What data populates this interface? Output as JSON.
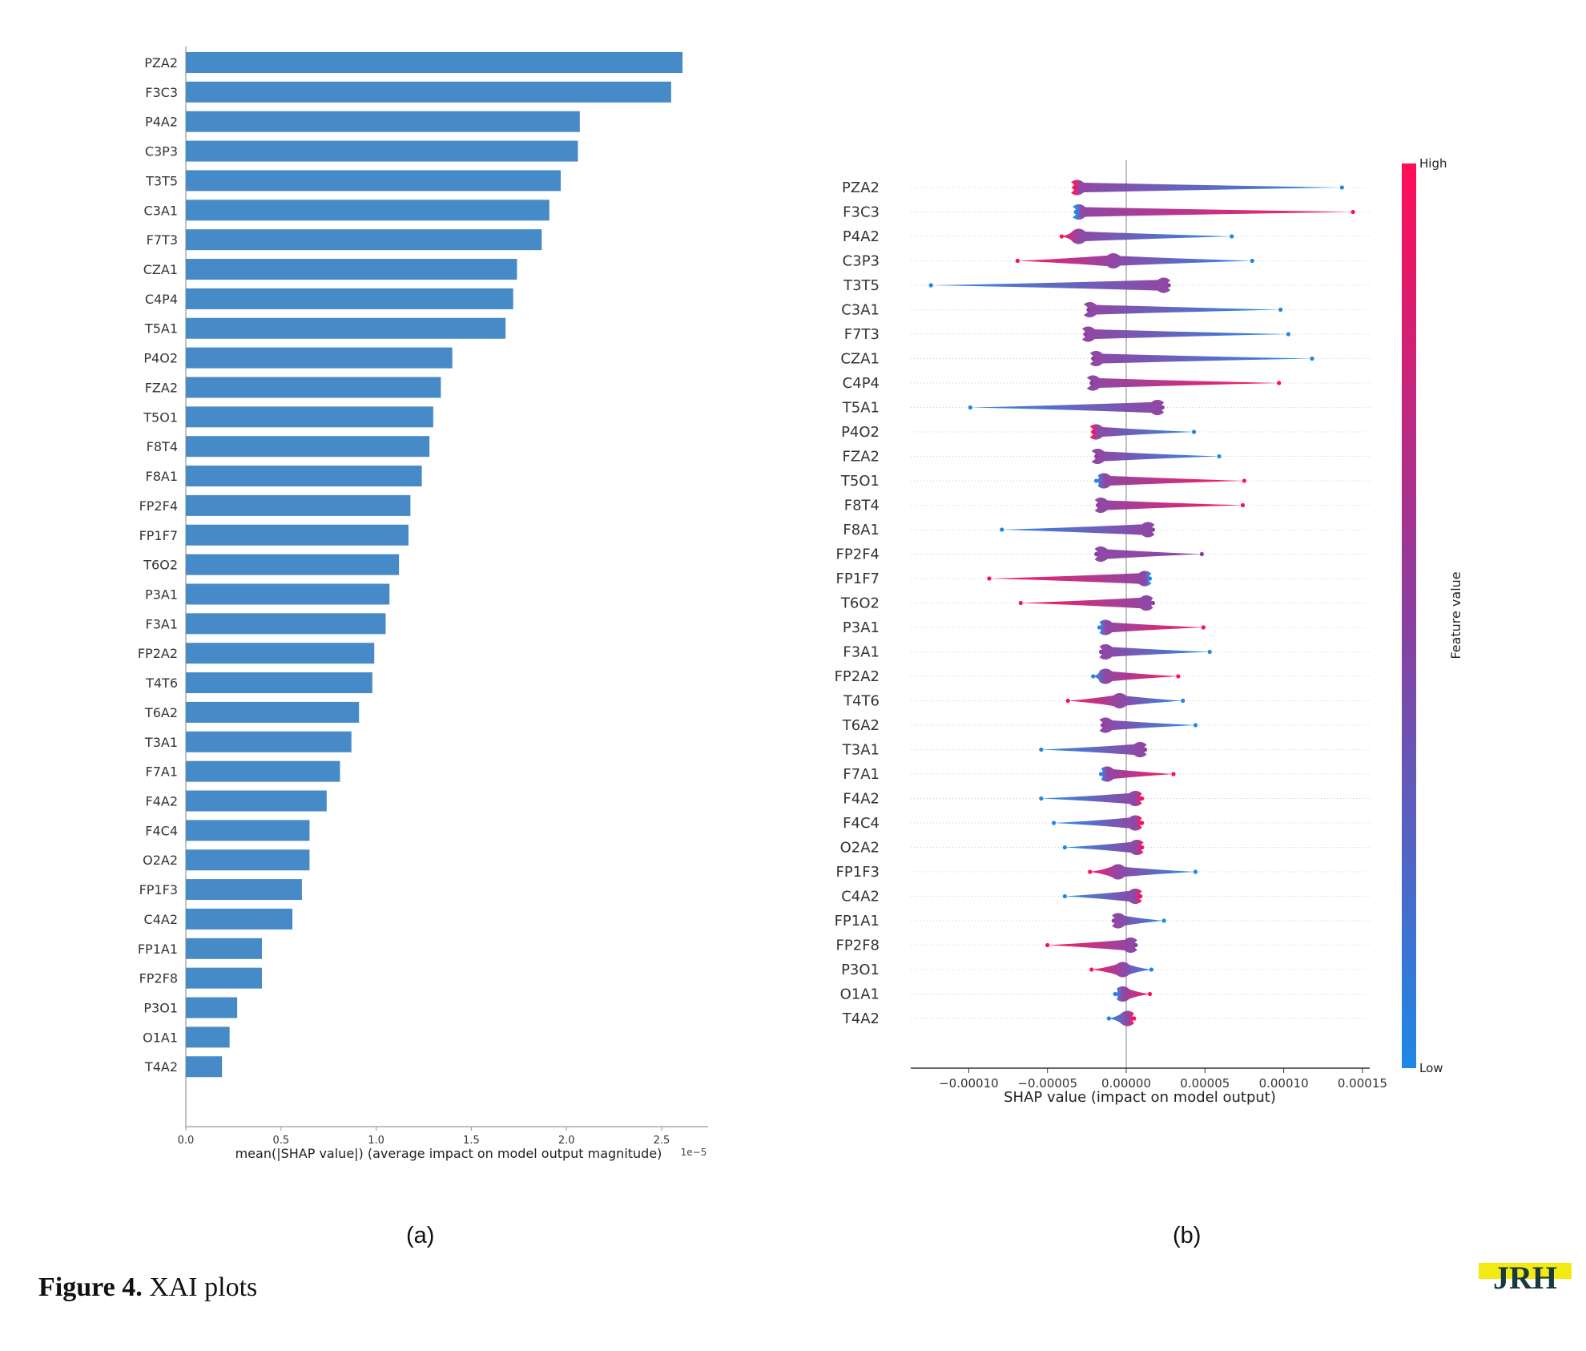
{
  "caption": {
    "label": "Figure 4.",
    "text": "XAI plots"
  },
  "subfigures": [
    "(a)",
    "(b)"
  ],
  "logo": {
    "text": "JRH",
    "colors": {
      "dark": "#17393f",
      "accent": "#f2ea12"
    }
  },
  "chart_data": [
    {
      "type": "bar",
      "orientation": "horizontal",
      "title": "",
      "xlabel": "mean(|SHAP value|) (average impact on model output magnitude)",
      "ylabel": "",
      "x_scale_label": "1e−5",
      "xlim": [
        0,
        2.75
      ],
      "xticks": [
        "0.0",
        "0.5",
        "1.0",
        "1.5",
        "2.0",
        "2.5"
      ],
      "color": "#468bc8",
      "grid": false,
      "categories": [
        "PZA2",
        "F3C3",
        "P4A2",
        "C3P3",
        "T3T5",
        "C3A1",
        "F7T3",
        "CZA1",
        "C4P4",
        "T5A1",
        "P4O2",
        "FZA2",
        "T5O1",
        "F8T4",
        "F8A1",
        "FP2F4",
        "FP1F7",
        "T6O2",
        "P3A1",
        "F3A1",
        "FP2A2",
        "T4T6",
        "T6A2",
        "T3A1",
        "F7A1",
        "F4A2",
        "F4C4",
        "O2A2",
        "FP1F3",
        "C4A2",
        "FP1A1",
        "FP2F8",
        "P3O1",
        "O1A1",
        "T4A2"
      ],
      "values": [
        2.61,
        2.55,
        2.07,
        2.06,
        1.97,
        1.91,
        1.87,
        1.74,
        1.72,
        1.68,
        1.4,
        1.34,
        1.3,
        1.28,
        1.24,
        1.18,
        1.17,
        1.12,
        1.07,
        1.05,
        0.99,
        0.98,
        0.91,
        0.87,
        0.81,
        0.74,
        0.65,
        0.65,
        0.61,
        0.56,
        0.4,
        0.4,
        0.27,
        0.23,
        0.19
      ]
    },
    {
      "type": "scatter",
      "subtype": "beeswarm",
      "title": "",
      "xlabel": "SHAP value (impact on model output)",
      "xlim": [
        -0.00012,
        0.000155
      ],
      "xticks": [
        "−0.00010",
        "−0.00005",
        "0.00000",
        "0.00005",
        "0.00010",
        "0.00015"
      ],
      "xtick_values": [
        -0.0001,
        -5e-05,
        0,
        5e-05,
        0.0001,
        0.00015
      ],
      "colorbar": {
        "label": "Feature value",
        "high": "High",
        "low": "Low",
        "high_color": "#ff0d57",
        "low_color": "#1e88e5"
      },
      "categories": [
        "PZA2",
        "F3C3",
        "P4A2",
        "C3P3",
        "T3T5",
        "C3A1",
        "F7T3",
        "CZA1",
        "C4P4",
        "T5A1",
        "P4O2",
        "FZA2",
        "T5O1",
        "F8T4",
        "F8A1",
        "FP2F4",
        "FP1F7",
        "T6O2",
        "P3A1",
        "F3A1",
        "FP2A2",
        "T4T6",
        "T6A2",
        "T3A1",
        "F7A1",
        "F4A2",
        "F4C4",
        "O2A2",
        "FP1F3",
        "C4A2",
        "FP1A1",
        "FP2F8",
        "P3O1",
        "O1A1",
        "T4A2"
      ],
      "series": [
        {
          "feature": "PZA2",
          "min": -3.3e-05,
          "mode": -3.1e-05,
          "max": 0.000137,
          "left_color": "high",
          "right_color": "low"
        },
        {
          "feature": "F3C3",
          "min": -3.2e-05,
          "mode": -3e-05,
          "max": 0.000144,
          "left_color": "low",
          "right_color": "high"
        },
        {
          "feature": "P4A2",
          "min": -4.1e-05,
          "mode": -3e-05,
          "max": 6.7e-05,
          "left_color": "high",
          "right_color": "low"
        },
        {
          "feature": "C3P3",
          "min": -6.9e-05,
          "mode": -8e-06,
          "max": 8e-05,
          "left_color": "high",
          "right_color": "low"
        },
        {
          "feature": "T3T5",
          "min": -0.000124,
          "mode": 2.4e-05,
          "max": 2.7e-05,
          "left_color": "low",
          "right_color": "mixed"
        },
        {
          "feature": "C3A1",
          "min": -2.4e-05,
          "mode": -2.3e-05,
          "max": 9.8e-05,
          "left_color": "mixed",
          "right_color": "low"
        },
        {
          "feature": "F7T3",
          "min": -2.6e-05,
          "mode": -2.4e-05,
          "max": 0.000103,
          "left_color": "mixed",
          "right_color": "low"
        },
        {
          "feature": "CZA1",
          "min": -2.1e-05,
          "mode": -1.9e-05,
          "max": 0.000118,
          "left_color": "mixed",
          "right_color": "low"
        },
        {
          "feature": "C4P4",
          "min": -2.2e-05,
          "mode": -2.1e-05,
          "max": 9.7e-05,
          "left_color": "mixed",
          "right_color": "high"
        },
        {
          "feature": "T5A1",
          "min": -9.9e-05,
          "mode": 2e-05,
          "max": 2.3e-05,
          "left_color": "low",
          "right_color": "mixed"
        },
        {
          "feature": "P4O2",
          "min": -2.1e-05,
          "mode": -1.9e-05,
          "max": 4.3e-05,
          "left_color": "high",
          "right_color": "low"
        },
        {
          "feature": "FZA2",
          "min": -1.9e-05,
          "mode": -1.8e-05,
          "max": 5.9e-05,
          "left_color": "mixed",
          "right_color": "low"
        },
        {
          "feature": "T5O1",
          "min": -1.9e-05,
          "mode": -1.4e-05,
          "max": 7.5e-05,
          "left_color": "low",
          "right_color": "high"
        },
        {
          "feature": "F8T4",
          "min": -1.8e-05,
          "mode": -1.6e-05,
          "max": 7.4e-05,
          "left_color": "mixed",
          "right_color": "high"
        },
        {
          "feature": "F8A1",
          "min": -7.9e-05,
          "mode": 1.4e-05,
          "max": 1.7e-05,
          "left_color": "low",
          "right_color": "mixed"
        },
        {
          "feature": "FP2F4",
          "min": -1.9e-05,
          "mode": -1.6e-05,
          "max": 4.8e-05,
          "left_color": "mixed",
          "right_color": "mixed"
        },
        {
          "feature": "FP1F7",
          "min": -8.7e-05,
          "mode": 1.2e-05,
          "max": 1.5e-05,
          "left_color": "high",
          "right_color": "low"
        },
        {
          "feature": "T6O2",
          "min": -6.7e-05,
          "mode": 1.3e-05,
          "max": 1.7e-05,
          "left_color": "high",
          "right_color": "mixed"
        },
        {
          "feature": "P3A1",
          "min": -1.7e-05,
          "mode": -1.3e-05,
          "max": 4.9e-05,
          "left_color": "low",
          "right_color": "high"
        },
        {
          "feature": "F3A1",
          "min": -1.6e-05,
          "mode": -1.3e-05,
          "max": 5.3e-05,
          "left_color": "mixed",
          "right_color": "low"
        },
        {
          "feature": "FP2A2",
          "min": -2.1e-05,
          "mode": -1.3e-05,
          "max": 3.3e-05,
          "left_color": "low",
          "right_color": "high"
        },
        {
          "feature": "T4T6",
          "min": -3.7e-05,
          "mode": -4e-06,
          "max": 3.6e-05,
          "left_color": "high",
          "right_color": "low"
        },
        {
          "feature": "T6A2",
          "min": -1.5e-05,
          "mode": -1.3e-05,
          "max": 4.4e-05,
          "left_color": "mixed",
          "right_color": "low"
        },
        {
          "feature": "T3A1",
          "min": -5.4e-05,
          "mode": 9e-06,
          "max": 1.2e-05,
          "left_color": "low",
          "right_color": "mixed"
        },
        {
          "feature": "F7A1",
          "min": -1.6e-05,
          "mode": -1.2e-05,
          "max": 3e-05,
          "left_color": "low",
          "right_color": "high"
        },
        {
          "feature": "F4A2",
          "min": -5.4e-05,
          "mode": 6e-06,
          "max": 1e-05,
          "left_color": "low",
          "right_color": "high"
        },
        {
          "feature": "F4C4",
          "min": -4.6e-05,
          "mode": 6e-06,
          "max": 1e-05,
          "left_color": "low",
          "right_color": "high"
        },
        {
          "feature": "O2A2",
          "min": -3.9e-05,
          "mode": 7e-06,
          "max": 1e-05,
          "left_color": "low",
          "right_color": "high"
        },
        {
          "feature": "FP1F3",
          "min": -2.3e-05,
          "mode": -5e-06,
          "max": 4.4e-05,
          "left_color": "high",
          "right_color": "low"
        },
        {
          "feature": "C4A2",
          "min": -3.9e-05,
          "mode": 6e-06,
          "max": 9e-06,
          "left_color": "low",
          "right_color": "high"
        },
        {
          "feature": "FP1A1",
          "min": -8e-06,
          "mode": -5e-06,
          "max": 2.4e-05,
          "left_color": "mixed",
          "right_color": "low"
        },
        {
          "feature": "FP2F8",
          "min": -5e-05,
          "mode": 3e-06,
          "max": 6e-06,
          "left_color": "high",
          "right_color": "mixed"
        },
        {
          "feature": "P3O1",
          "min": -2.2e-05,
          "mode": -2e-06,
          "max": 1.6e-05,
          "left_color": "high",
          "right_color": "low"
        },
        {
          "feature": "O1A1",
          "min": -7e-06,
          "mode": -2e-06,
          "max": 1.5e-05,
          "left_color": "low",
          "right_color": "high"
        },
        {
          "feature": "T4A2",
          "min": -1.1e-05,
          "mode": 1e-06,
          "max": 5e-06,
          "left_color": "low",
          "right_color": "high"
        }
      ]
    }
  ]
}
